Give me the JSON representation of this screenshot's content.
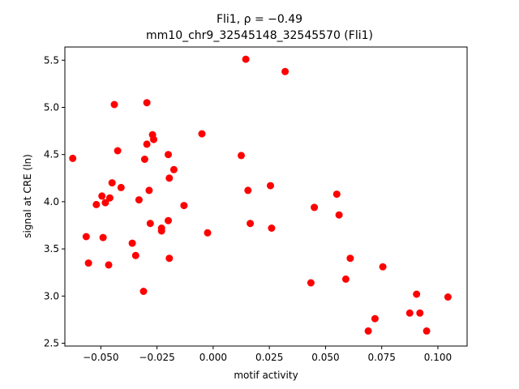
{
  "chart_data": {
    "type": "scatter",
    "title": "Fli1, ρ = −0.49",
    "subtitle": "mm10_chr9_32545148_32545570 (Fli1)",
    "xlabel": "motif activity",
    "ylabel": "signal at CRE (ln)",
    "xlim": [
      -0.066,
      0.113
    ],
    "ylim": [
      2.47,
      5.64
    ],
    "xticks": [
      -0.05,
      -0.025,
      0.0,
      0.025,
      0.05,
      0.075,
      0.1
    ],
    "xtick_labels": [
      "−0.050",
      "−0.025",
      "0.000",
      "0.025",
      "0.050",
      "0.075",
      "0.100"
    ],
    "yticks": [
      2.5,
      3.0,
      3.5,
      4.0,
      4.5,
      5.0,
      5.5
    ],
    "ytick_labels": [
      "2.5",
      "3.0",
      "3.5",
      "4.0",
      "4.5",
      "5.0",
      "5.5"
    ],
    "grid": false,
    "marker_color": "#ff0000",
    "points": [
      [
        -0.0625,
        4.46
      ],
      [
        -0.0565,
        3.63
      ],
      [
        -0.0555,
        3.35
      ],
      [
        -0.052,
        3.97
      ],
      [
        -0.0495,
        4.06
      ],
      [
        -0.049,
        3.62
      ],
      [
        -0.048,
        3.99
      ],
      [
        -0.0465,
        3.33
      ],
      [
        -0.046,
        4.04
      ],
      [
        -0.045,
        4.2
      ],
      [
        -0.044,
        5.03
      ],
      [
        -0.0425,
        4.54
      ],
      [
        -0.041,
        4.15
      ],
      [
        -0.036,
        3.56
      ],
      [
        -0.0345,
        3.43
      ],
      [
        -0.033,
        4.02
      ],
      [
        -0.031,
        3.05
      ],
      [
        -0.0305,
        4.45
      ],
      [
        -0.0295,
        5.05
      ],
      [
        -0.0295,
        4.61
      ],
      [
        -0.0285,
        4.12
      ],
      [
        -0.028,
        3.77
      ],
      [
        -0.027,
        4.71
      ],
      [
        -0.0265,
        4.66
      ],
      [
        -0.023,
        3.72
      ],
      [
        -0.023,
        3.69
      ],
      [
        -0.02,
        4.5
      ],
      [
        -0.02,
        3.8
      ],
      [
        -0.0195,
        4.25
      ],
      [
        -0.0195,
        3.4
      ],
      [
        -0.0175,
        4.34
      ],
      [
        -0.013,
        3.96
      ],
      [
        -0.005,
        4.72
      ],
      [
        -0.0025,
        3.67
      ],
      [
        0.0125,
        4.49
      ],
      [
        0.0145,
        5.51
      ],
      [
        0.0155,
        4.12
      ],
      [
        0.0165,
        3.77
      ],
      [
        0.0255,
        4.17
      ],
      [
        0.026,
        3.72
      ],
      [
        0.032,
        5.38
      ],
      [
        0.0435,
        3.14
      ],
      [
        0.045,
        3.94
      ],
      [
        0.055,
        4.08
      ],
      [
        0.056,
        3.86
      ],
      [
        0.059,
        3.18
      ],
      [
        0.061,
        3.4
      ],
      [
        0.069,
        2.63
      ],
      [
        0.072,
        2.76
      ],
      [
        0.0755,
        3.31
      ],
      [
        0.0875,
        2.82
      ],
      [
        0.0905,
        3.02
      ],
      [
        0.092,
        2.82
      ],
      [
        0.095,
        2.63
      ],
      [
        0.1045,
        2.99
      ]
    ]
  }
}
